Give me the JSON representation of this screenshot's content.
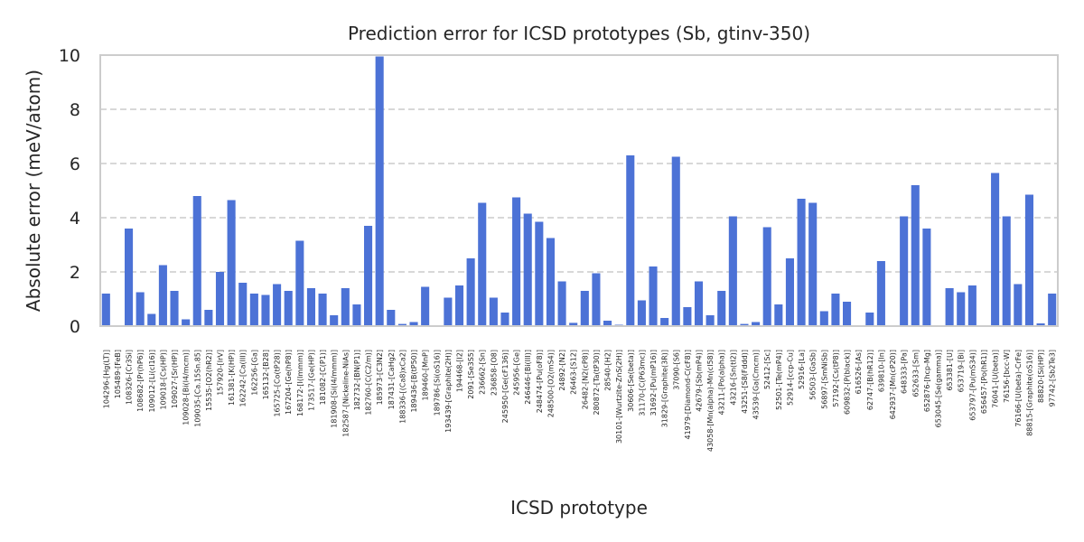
{
  "chart_data": {
    "type": "bar",
    "title": "Prediction error for ICSD prototypes (Sb, gtinv-350)",
    "xlabel": "ICSD prototype",
    "ylabel": "Absolute error (meV/atom)",
    "ylim": [
      0,
      10
    ],
    "yticks": [
      "0",
      "2",
      "4",
      "6",
      "8",
      "10"
    ],
    "grid": "y-dashed",
    "bar_color": "#4c72d6",
    "categories": [
      "104296-[Hg(LT)]",
      "105489-[FeB]",
      "108326-[Cr3Si]",
      "108682-[Pr(hP6)]",
      "109012-[Li(cI16)]",
      "109018-[Cs(HP)]",
      "109027-[Sr(HP)]",
      "109028-[Bi(I4/mcm)]",
      "109035-[Ca.15Sn.85]",
      "15535-[O2(hR2)]",
      "157920-[IrV]",
      "161381-[K(HP)]",
      "162242-[Ca(III)]",
      "162256-[Ga]",
      "165132-[B28]",
      "165725-[Co(tP28)]",
      "167204-[Ge(hP8)]",
      "168172-[I(Immm)]",
      "173517-[Ge(HP)]",
      "181082-[C(P1)]",
      "181908-[Si(I4/mmm)]",
      "182587-[Nickeline-NiAs]",
      "182732-[BN(P1)]",
      "182760-[C(C2/m)]",
      "185973-[C3N2]",
      "187431-[CaHg2]",
      "188336-[(Ca8)xCa2]",
      "189436-[B(tP50)]",
      "189460-[MnP]",
      "189786-[Si(oS16)]",
      "193439-[Graphite(2H)]",
      "194468-[I2]",
      "2091-[Se3S5]",
      "236662-[Sn]",
      "236858-[O8]",
      "245950-[Ge(cF136)]",
      "245956-[Ge]",
      "246446-[Bi(III)]",
      "248474-[Pu(oF8)]",
      "248500-[O2(mS4)]",
      "24892-[N2]",
      "26463-[S12]",
      "26482-[N2(cP8)]",
      "280872-[Ta(tP30)]",
      "28540-[H2]",
      "30101-[Wurtzite-ZnS(2H)]",
      "30606-[Se(beta)]",
      "31170-[C(P63mc)]",
      "31692-[Pu(mP16)]",
      "31829-[Graphite(3R)]",
      "37090-[S6]",
      "41979-[Diamond-C(cF8)]",
      "42679-[Sb(mP4)]",
      "43058-[Mn(alpha)-Mn(cI58)]",
      "43211-[Po(alpha)]",
      "43216-[Sn(tI2)]",
      "43251-[S8(Fddd)]",
      "43539-[Ga(Cmcm)]",
      "52412-[Sc]",
      "52501-[Te(mP4)]",
      "52914-[ccp-Cu]",
      "52916-[La]",
      "56503-[GaSb]",
      "56897-[SmNiSb]",
      "57192-[Cs(tP8)]",
      "609832-[P(black)]",
      "616526-[As]",
      "62747-[B(hR12)]",
      "639810-[In]",
      "642937-[Mn(cP20)]",
      "648333-[Pa]",
      "652633-[Sm]",
      "652876-[hcp-Mg]",
      "653045-[Se(gamma)]",
      "653381-[U]",
      "653719-[Bi]",
      "653797-[Pu(mS34)]",
      "656457-[Po(hR1)]",
      "76041-[U(beta)]",
      "76156-[bcc-W]",
      "76166-[U(beta)-CrFe]",
      "88815-[Graphite(oS16)]",
      "88820-[Si(HP)]",
      "97742-[Sb2Te3]"
    ],
    "values": [
      1.2,
      0.0,
      3.6,
      1.25,
      0.45,
      2.25,
      1.3,
      0.25,
      4.8,
      0.6,
      2.0,
      4.65,
      1.6,
      1.2,
      1.15,
      1.55,
      1.3,
      3.15,
      1.4,
      1.2,
      0.4,
      1.4,
      0.8,
      3.7,
      9.95,
      0.6,
      0.08,
      0.15,
      1.45,
      0.0,
      1.05,
      1.5,
      2.5,
      4.55,
      1.05,
      0.5,
      4.75,
      4.15,
      3.85,
      3.25,
      1.65,
      0.12,
      1.3,
      1.95,
      0.2,
      0.05,
      6.3,
      0.95,
      2.2,
      0.3,
      6.25,
      0.7,
      1.65,
      0.4,
      1.3,
      4.05,
      0.08,
      0.15,
      3.65,
      0.8,
      2.5,
      4.7,
      4.55,
      0.55,
      1.2,
      0.9,
      0.0,
      0.5,
      2.4,
      0.0,
      4.05,
      5.2,
      3.6,
      0.0,
      1.4,
      1.25,
      1.5,
      0.0,
      5.65,
      4.05,
      1.55,
      4.85,
      0.1,
      1.2
    ]
  }
}
